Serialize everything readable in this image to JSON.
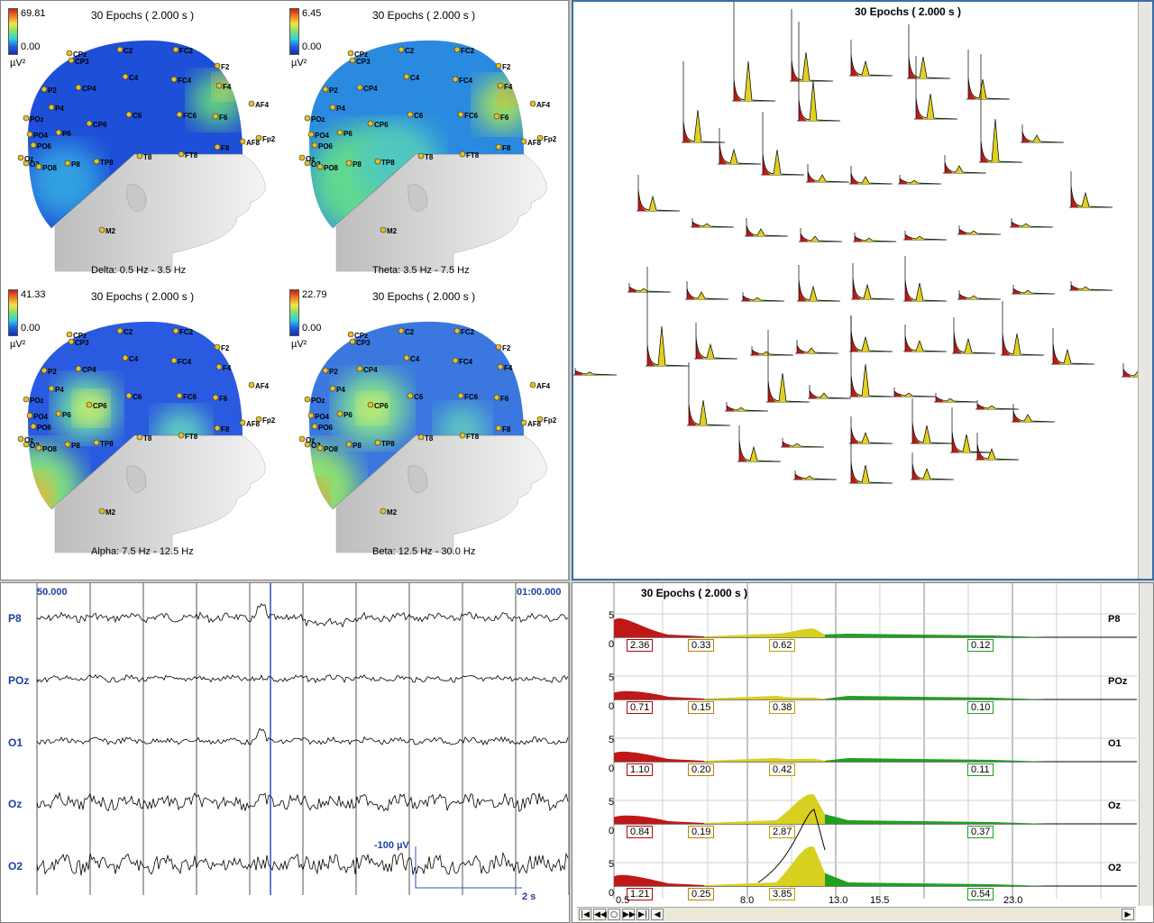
{
  "topo": {
    "quads": [
      {
        "max": "69.81",
        "min": "0.00",
        "unit": "µV²",
        "title": "30 Epochs ( 2.000 s )",
        "band": "Delta: 0.5 Hz - 3.5 Hz"
      },
      {
        "max": "6.45",
        "min": "0.00",
        "unit": "µV²",
        "title": "30 Epochs ( 2.000 s )",
        "band": "Theta: 3.5 Hz - 7.5 Hz"
      },
      {
        "max": "41.33",
        "min": "0.00",
        "unit": "µV²",
        "title": "30 Epochs ( 2.000 s )",
        "band": "Alpha: 7.5 Hz - 12.5 Hz"
      },
      {
        "max": "22.79",
        "min": "0.00",
        "unit": "µV²",
        "title": "30 Epochs ( 2.000 s )",
        "band": "Beta: 12.5 Hz - 30.0 Hz"
      }
    ],
    "electrodes": [
      "CPz",
      "CP3",
      "C2",
      "FC2",
      "F2",
      "P2",
      "CP4",
      "C4",
      "FC4",
      "F4",
      "AF4",
      "POz",
      "P4",
      "CP6",
      "C6",
      "FC6",
      "F6",
      "Fp2",
      "PO4",
      "P6",
      "AF8",
      "PO6",
      "F8",
      "O2",
      "PO8",
      "P8",
      "TP8",
      "T8",
      "FT8",
      "Oz",
      "M2"
    ]
  },
  "spec3d": {
    "title": "30 Epochs ( 2.000 s )"
  },
  "eeg": {
    "start_time": "50.000",
    "end_time": "01:00.000",
    "channels": [
      "P8",
      "POz",
      "O1",
      "Oz",
      "O2"
    ],
    "scale_label": "-100 µV",
    "time_scale": "2 s"
  },
  "spectrum": {
    "title": "30 Epochs ( 2.000 s )",
    "ymax": "5",
    "ymin": "0",
    "channels": [
      {
        "name": "P8",
        "values": [
          "2.36",
          "0.33",
          "0.62",
          "0.12"
        ]
      },
      {
        "name": "POz",
        "values": [
          "0.71",
          "0.15",
          "0.38",
          "0.10"
        ]
      },
      {
        "name": "O1",
        "values": [
          "1.10",
          "0.20",
          "0.42",
          "0.11"
        ]
      },
      {
        "name": "Oz",
        "values": [
          "0.84",
          "0.19",
          "2.87",
          "0.37"
        ]
      },
      {
        "name": "O2",
        "values": [
          "1.21",
          "0.25",
          "3.85",
          "0.54"
        ]
      }
    ],
    "xticks": [
      "0.5",
      "8.0",
      "13.0",
      "15.5",
      "23.0"
    ],
    "box_colors": [
      "#c00000",
      "#c08000",
      "#c0a000",
      "#20a020"
    ]
  },
  "nav": {
    "buttons": [
      "|◀",
      "◀◀",
      "○",
      "▶▶",
      "▶|",
      "◀",
      "▶"
    ]
  }
}
